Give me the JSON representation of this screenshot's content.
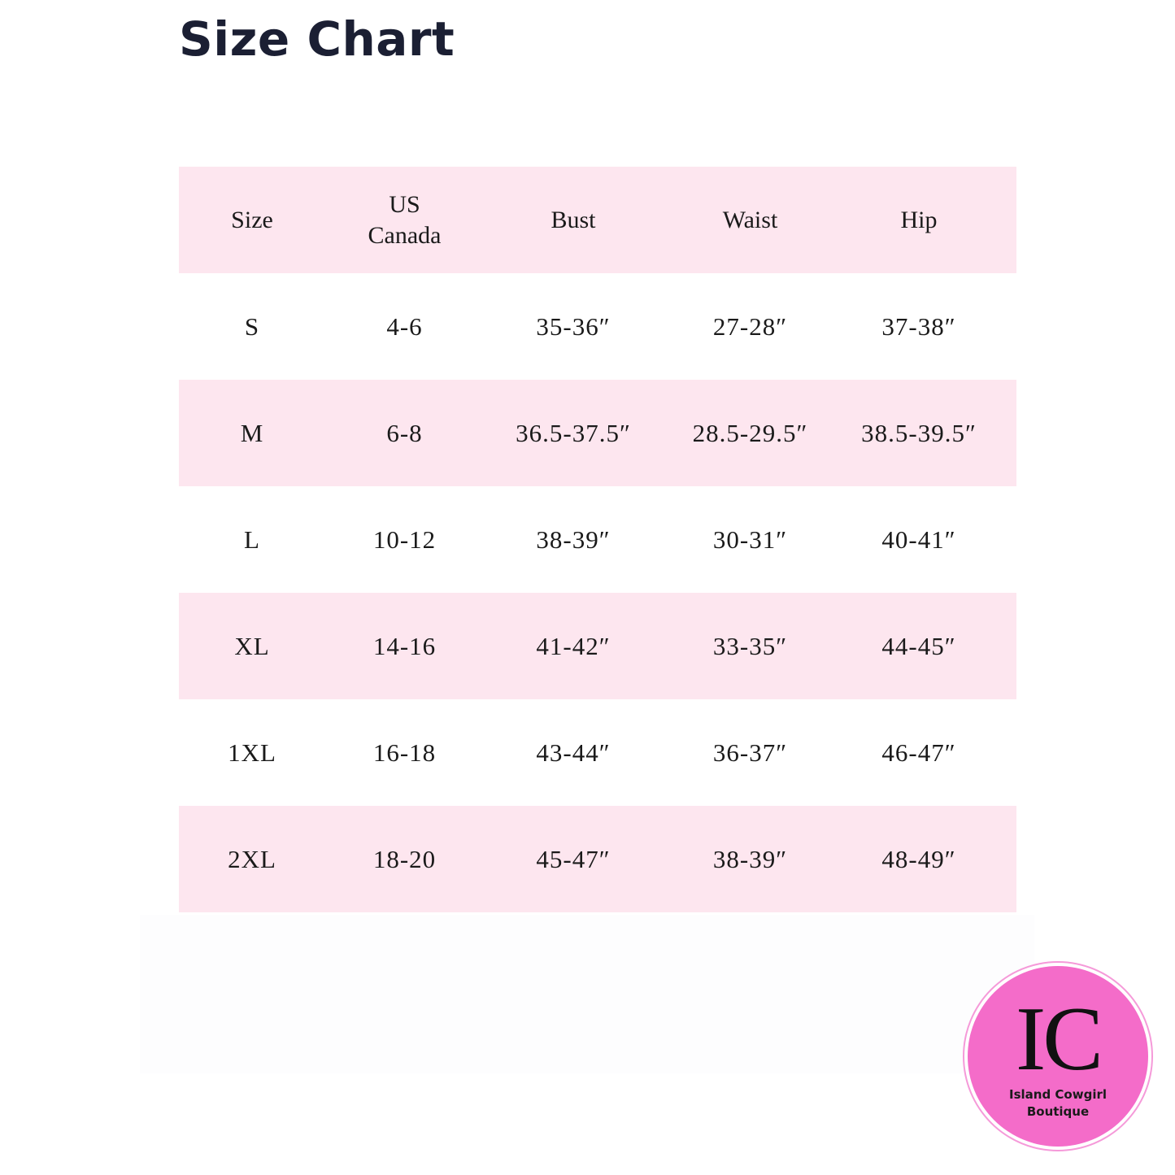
{
  "title": "Size Chart",
  "table": {
    "headers": [
      [
        "Size"
      ],
      [
        "US",
        "Canada"
      ],
      [
        "Bust"
      ],
      [
        "Waist"
      ],
      [
        "Hip"
      ]
    ],
    "rows": [
      [
        "S",
        "4-6",
        "35-36″",
        "27-28″",
        "37-38″"
      ],
      [
        "M",
        "6-8",
        "36.5-37.5″",
        "28.5-29.5″",
        "38.5-39.5″"
      ],
      [
        "L",
        "10-12",
        "38-39″",
        "30-31″",
        "40-41″"
      ],
      [
        "XL",
        "14-16",
        "41-42″",
        "33-35″",
        "44-45″"
      ],
      [
        "1XL",
        "16-18",
        "43-44″",
        "36-37″",
        "46-47″"
      ],
      [
        "2XL",
        "18-20",
        "45-47″",
        "38-39″",
        "48-49″"
      ]
    ]
  },
  "logo": {
    "monogram": "IC",
    "line1": "Island Cowgirl",
    "line2": "Boutique"
  },
  "colors": {
    "row_pink": "#fde6ef",
    "logo_pink": "#f46cc9",
    "title": "#1b1f33"
  }
}
